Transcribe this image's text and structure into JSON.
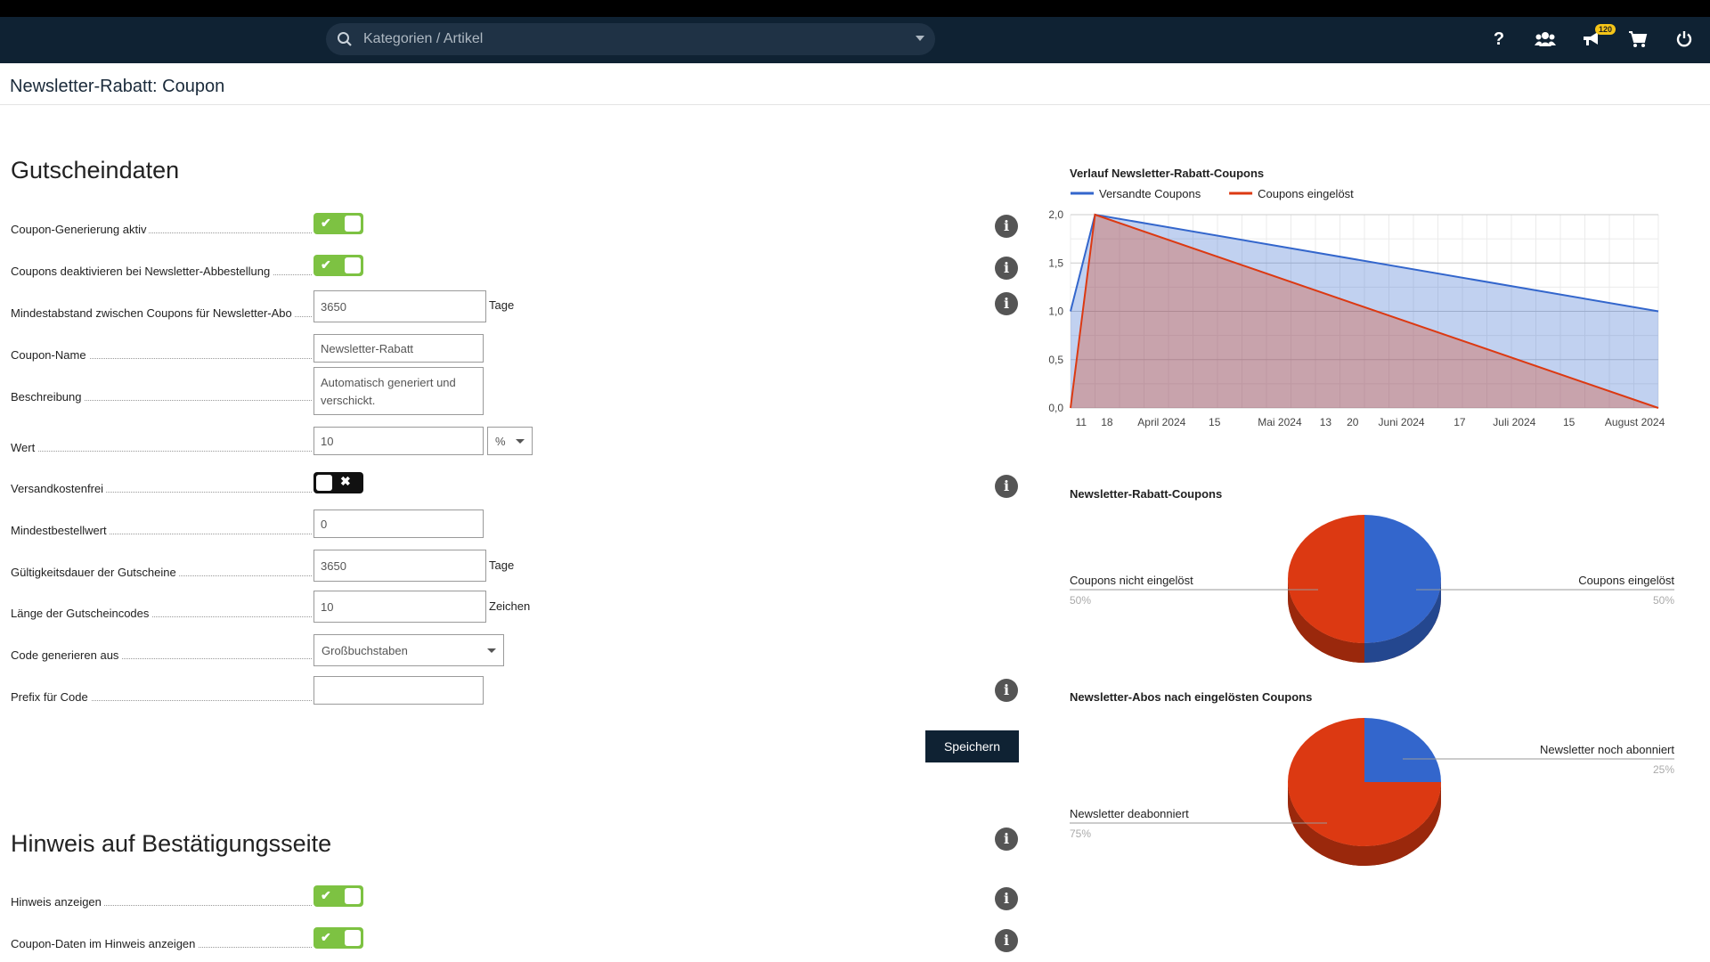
{
  "topbar": {
    "search_placeholder": "Kategorien / Artikel",
    "notification_count": "120",
    "icons": [
      "help-icon",
      "users-icon",
      "megaphone-icon",
      "cart-icon",
      "power-icon"
    ]
  },
  "page": {
    "title": "Newsletter-Rabatt: Coupon"
  },
  "section1": {
    "title": "Gutscheindaten",
    "rows": {
      "coupon_generation": {
        "label": "Coupon-Generierung aktiv",
        "on": true
      },
      "deactivate_on_unsubscribe": {
        "label": "Coupons deaktivieren bei Newsletter-Abbestellung",
        "on": true
      },
      "min_distance": {
        "label": "Mindestabstand zwischen Coupons für Newsletter-Abo",
        "value": "3650",
        "unit": "Tage"
      },
      "coupon_name": {
        "label": "Coupon-Name",
        "value": "Newsletter-Rabatt"
      },
      "description": {
        "label": "Beschreibung",
        "value": "Automatisch generiert und verschickt."
      },
      "value": {
        "label": "Wert",
        "value": "10",
        "type": "%"
      },
      "free_shipping": {
        "label": "Versandkostenfrei",
        "on": false
      },
      "min_order": {
        "label": "Mindestbestellwert",
        "value": "0"
      },
      "validity": {
        "label": "Gültigkeitsdauer der Gutscheine",
        "value": "3650",
        "unit": "Tage"
      },
      "code_length": {
        "label": "Länge der Gutscheincodes",
        "value": "10",
        "unit": "Zeichen"
      },
      "code_chars": {
        "label": "Code generieren aus",
        "value": "Großbuchstaben"
      },
      "prefix": {
        "label": "Prefix für Code",
        "value": ""
      }
    },
    "save_label": "Speichern"
  },
  "section2": {
    "title": "Hinweis auf Bestätigungsseite",
    "rows": {
      "show_hint": {
        "label": "Hinweis anzeigen",
        "on": true
      },
      "show_coupon_data": {
        "label": "Coupon-Daten im Hinweis anzeigen",
        "on": true
      }
    }
  },
  "colors": {
    "blue": "#3366cc",
    "red": "#dc3912",
    "toggle_on": "#7dc242",
    "nav": "#0f2233"
  },
  "chart_data": [
    {
      "type": "area",
      "title": "Verlauf Newsletter-Rabatt-Coupons",
      "legend_position": "top",
      "x": [
        "2024-03-11",
        "2024-03-18",
        "2024-08-26"
      ],
      "x_tick_labels": [
        "11",
        "18",
        "April 2024",
        "15",
        "Mai 2024",
        "13",
        "20",
        "Juni 2024",
        "17",
        "Juli 2024",
        "15",
        "August 2024"
      ],
      "ylim": [
        0,
        2
      ],
      "y_tick_labels": [
        "0,0",
        "0,5",
        "1,0",
        "1,5",
        "2,0"
      ],
      "grid": true,
      "series": [
        {
          "name": "Versandte Coupons",
          "color": "#3366cc",
          "values": [
            1,
            2,
            1
          ]
        },
        {
          "name": "Coupons eingelöst",
          "color": "#dc3912",
          "values": [
            0,
            2,
            0
          ]
        }
      ]
    },
    {
      "type": "pie",
      "title": "Newsletter-Rabatt-Coupons",
      "slices": [
        {
          "label": "Coupons eingelöst",
          "value": 50,
          "pct": "50%",
          "color": "#3366cc"
        },
        {
          "label": "Coupons nicht eingelöst",
          "value": 50,
          "pct": "50%",
          "color": "#dc3912"
        }
      ]
    },
    {
      "type": "pie",
      "title": "Newsletter-Abos nach eingelösten Coupons",
      "slices": [
        {
          "label": "Newsletter noch abonniert",
          "value": 25,
          "pct": "25%",
          "color": "#3366cc"
        },
        {
          "label": "Newsletter deabonniert",
          "value": 75,
          "pct": "75%",
          "color": "#dc3912"
        }
      ]
    }
  ]
}
